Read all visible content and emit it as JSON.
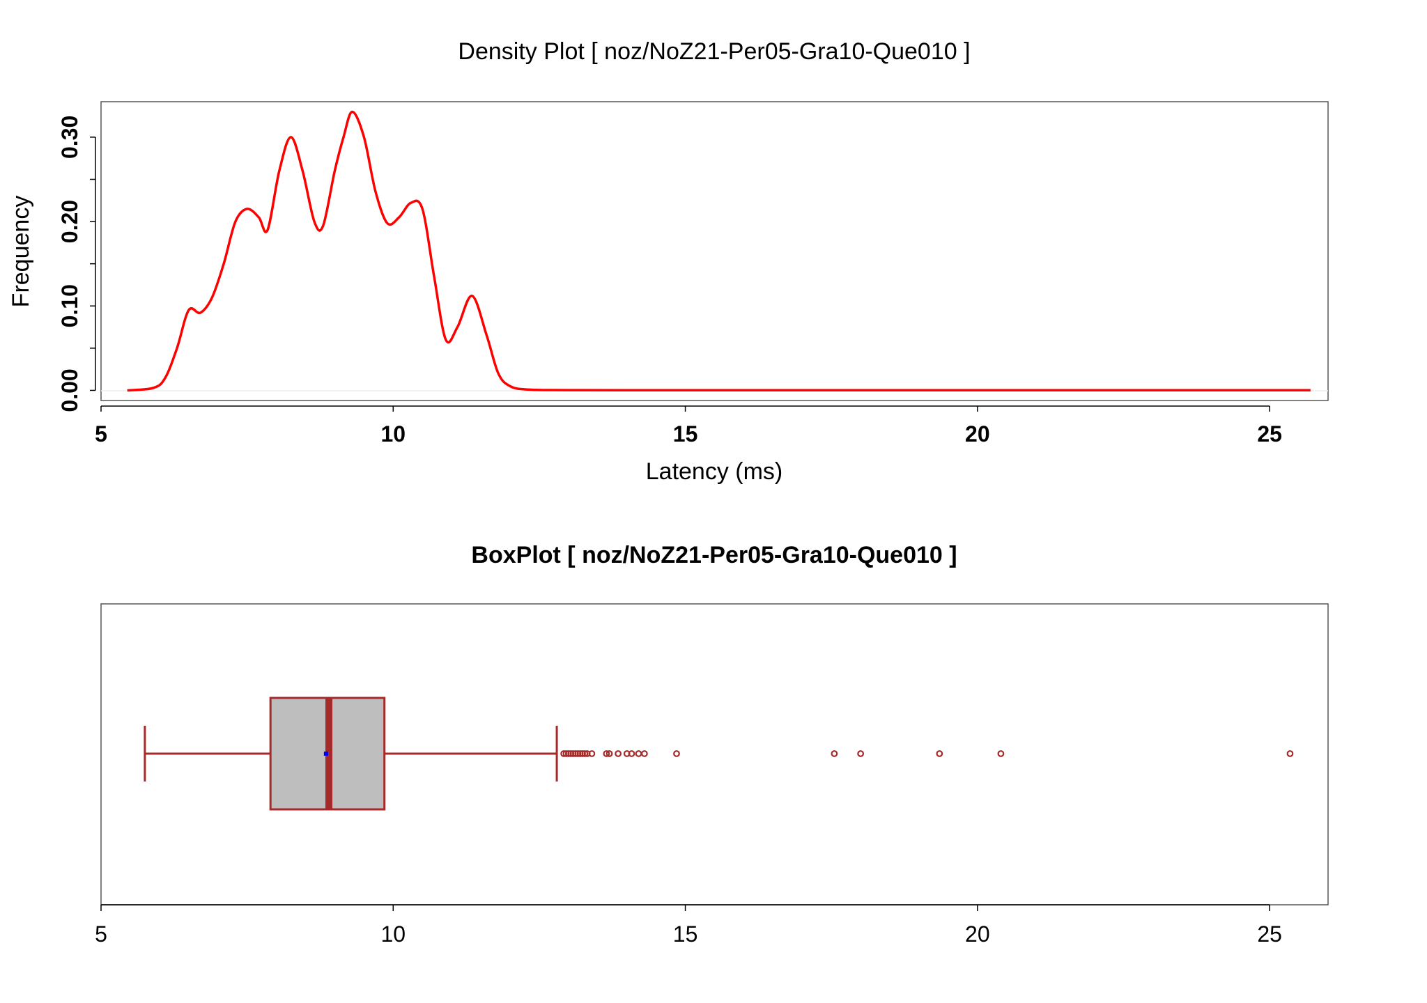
{
  "chart_data": [
    {
      "type": "line",
      "title": "Density Plot [ noz/NoZ21-Per05-Gra10-Que010 ]",
      "xlabel": "Latency (ms)",
      "ylabel": "Frequency",
      "xlim": [
        5,
        26
      ],
      "ylim": [
        -0.012,
        0.342
      ],
      "x_ticks": [
        "5",
        "10",
        "15",
        "20",
        "25"
      ],
      "y_ticks": [
        "0.00",
        "0.10",
        "0.20",
        "0.30"
      ],
      "line_color": "#ff0000",
      "series": [
        {
          "x": [
            5.45,
            5.9,
            6.1,
            6.3,
            6.5,
            6.7,
            6.9,
            7.1,
            7.3,
            7.5,
            7.7,
            7.85,
            8.05,
            8.25,
            8.45,
            8.65,
            8.8,
            9.0,
            9.15,
            9.3,
            9.5,
            9.7,
            9.9,
            10.1,
            10.3,
            10.5,
            10.7,
            10.9,
            11.1,
            11.35,
            11.6,
            11.8,
            12.0,
            12.3,
            13.0,
            15.0,
            20.0,
            25.7
          ],
          "y": [
            0.0,
            0.003,
            0.015,
            0.05,
            0.095,
            0.092,
            0.11,
            0.15,
            0.2,
            0.215,
            0.205,
            0.19,
            0.26,
            0.3,
            0.26,
            0.2,
            0.195,
            0.26,
            0.3,
            0.33,
            0.3,
            0.235,
            0.198,
            0.205,
            0.222,
            0.215,
            0.135,
            0.06,
            0.075,
            0.112,
            0.065,
            0.02,
            0.005,
            0.001,
            0.0003,
            0.0001,
            0.0001,
            0.0001
          ]
        }
      ]
    },
    {
      "type": "boxplot",
      "title": "BoxPlot [ noz/NoZ21-Per05-Gra10-Que010 ]",
      "xlim": [
        5,
        26
      ],
      "x_ticks": [
        "5",
        "10",
        "15",
        "20",
        "25"
      ],
      "stats": {
        "whisker_low": 5.75,
        "q1": 7.9,
        "median": 8.9,
        "q3": 9.85,
        "whisker_high": 12.8,
        "mean": 8.85
      },
      "outliers": [
        12.92,
        12.96,
        13.0,
        13.04,
        13.08,
        13.12,
        13.16,
        13.2,
        13.24,
        13.28,
        13.32,
        13.4,
        13.65,
        13.7,
        13.85,
        14.0,
        14.08,
        14.2,
        14.3,
        14.85,
        17.55,
        18.0,
        19.35,
        20.4,
        25.35
      ],
      "box_color": "#bebebe",
      "border_color": "#a52a2a",
      "mean_color": "#0000ff"
    }
  ]
}
